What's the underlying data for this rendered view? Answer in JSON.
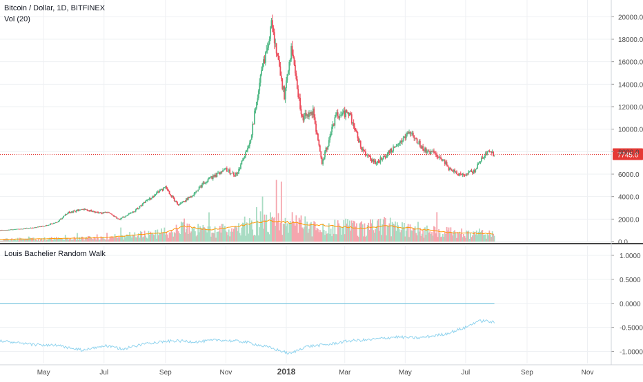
{
  "header": {
    "symbol_title": "Bitcoin / Dollar, 1D, BITFINEX",
    "volume_title": "Vol (20)",
    "indicator_title": "Louis Bachelier Random Walk"
  },
  "colors": {
    "up": "#53b987",
    "down": "#eb4d5c",
    "volume_up": "#a9dcc3",
    "volume_down": "#f5a6ae",
    "volume_ma": "#ff9800",
    "walk": "#8fd3ee",
    "zero_line": "#7fc8e0",
    "last_price_line": "#e53935",
    "grid": "#eef0f3",
    "axis_text": "#4a4a4a",
    "separator": "#444444"
  },
  "chart_data": [
    {
      "type": "candlestick",
      "title": "Bitcoin / Dollar, 1D, BITFINEX",
      "x_tick_labels": [
        "May",
        "Jul",
        "Sep",
        "Nov",
        "2018",
        "Mar",
        "May",
        "Jul",
        "Sep",
        "Nov"
      ],
      "y_tick_labels": [
        "0.0",
        "2000.0",
        "4000.0",
        "6000.0",
        "8000.0",
        "10000.0",
        "12000.0",
        "14000.0",
        "16000.0",
        "18000.0",
        "20000.0"
      ],
      "ylim": [
        0,
        21000
      ],
      "last_price": 7745.0,
      "last_price_label": "7745.0",
      "x_range": [
        "2017-03-18",
        "2018-11-25"
      ],
      "closes": [
        [
          "2017-03-18",
          1000
        ],
        [
          "2017-04-01",
          1080
        ],
        [
          "2017-04-15",
          1180
        ],
        [
          "2017-05-01",
          1380
        ],
        [
          "2017-05-15",
          1750
        ],
        [
          "2017-05-25",
          2550
        ],
        [
          "2017-06-10",
          2900
        ],
        [
          "2017-06-25",
          2550
        ],
        [
          "2017-07-05",
          2600
        ],
        [
          "2017-07-16",
          1950
        ],
        [
          "2017-08-01",
          2750
        ],
        [
          "2017-08-10",
          3400
        ],
        [
          "2017-08-20",
          4100
        ],
        [
          "2017-09-01",
          4800
        ],
        [
          "2017-09-14",
          3200
        ],
        [
          "2017-09-30",
          4300
        ],
        [
          "2017-10-12",
          5400
        ],
        [
          "2017-10-31",
          6400
        ],
        [
          "2017-11-12",
          5900
        ],
        [
          "2017-11-26",
          9200
        ],
        [
          "2017-12-07",
          15000
        ],
        [
          "2017-12-17",
          19300
        ],
        [
          "2017-12-30",
          13000
        ],
        [
          "2018-01-06",
          17000
        ],
        [
          "2018-01-17",
          11000
        ],
        [
          "2018-01-28",
          11500
        ],
        [
          "2018-02-06",
          6900
        ],
        [
          "2018-02-20",
          11200
        ],
        [
          "2018-03-05",
          11500
        ],
        [
          "2018-03-18",
          8200
        ],
        [
          "2018-04-01",
          6900
        ],
        [
          "2018-04-15",
          8000
        ],
        [
          "2018-05-05",
          9800
        ],
        [
          "2018-05-20",
          8200
        ],
        [
          "2018-06-05",
          7600
        ],
        [
          "2018-06-15",
          6400
        ],
        [
          "2018-06-29",
          5900
        ],
        [
          "2018-07-10",
          6300
        ],
        [
          "2018-07-17",
          7400
        ],
        [
          "2018-07-24",
          8200
        ],
        [
          "2018-07-30",
          7745
        ]
      ],
      "volume_ma": [
        [
          "2017-03-18",
          200
        ],
        [
          "2017-05-01",
          250
        ],
        [
          "2017-07-01",
          350
        ],
        [
          "2017-09-01",
          800
        ],
        [
          "2017-09-20",
          1400
        ],
        [
          "2017-10-15",
          1000
        ],
        [
          "2017-11-15",
          1400
        ],
        [
          "2017-12-15",
          1900
        ],
        [
          "2018-01-15",
          1600
        ],
        [
          "2018-02-15",
          1400
        ],
        [
          "2018-03-15",
          1200
        ],
        [
          "2018-04-15",
          1400
        ],
        [
          "2018-05-15",
          1100
        ],
        [
          "2018-06-15",
          800
        ],
        [
          "2018-07-30",
          700
        ]
      ]
    },
    {
      "type": "line",
      "title": "Louis Bachelier Random Walk",
      "y_tick_labels": [
        "1.0000",
        "0.5000",
        "0.0000",
        "-0.5000",
        "-1.0000"
      ],
      "ylim": [
        -1.25,
        1.2
      ],
      "zero_line": 0.0,
      "series_points": [
        [
          "2017-03-18",
          -0.78
        ],
        [
          "2017-04-15",
          -0.85
        ],
        [
          "2017-05-15",
          -0.88
        ],
        [
          "2017-06-10",
          -0.98
        ],
        [
          "2017-07-01",
          -0.88
        ],
        [
          "2017-07-20",
          -0.95
        ],
        [
          "2017-08-15",
          -0.82
        ],
        [
          "2017-09-10",
          -0.78
        ],
        [
          "2017-10-05",
          -0.8
        ],
        [
          "2017-10-25",
          -0.76
        ],
        [
          "2017-11-20",
          -0.8
        ],
        [
          "2017-12-15",
          -0.92
        ],
        [
          "2018-01-05",
          -1.05
        ],
        [
          "2018-01-20",
          -0.9
        ],
        [
          "2018-02-15",
          -0.85
        ],
        [
          "2018-03-05",
          -0.78
        ],
        [
          "2018-03-25",
          -0.76
        ],
        [
          "2018-04-20",
          -0.7
        ],
        [
          "2018-05-15",
          -0.72
        ],
        [
          "2018-06-10",
          -0.64
        ],
        [
          "2018-07-01",
          -0.5
        ],
        [
          "2018-07-12",
          -0.38
        ],
        [
          "2018-07-20",
          -0.36
        ],
        [
          "2018-07-30",
          -0.4
        ]
      ]
    }
  ]
}
